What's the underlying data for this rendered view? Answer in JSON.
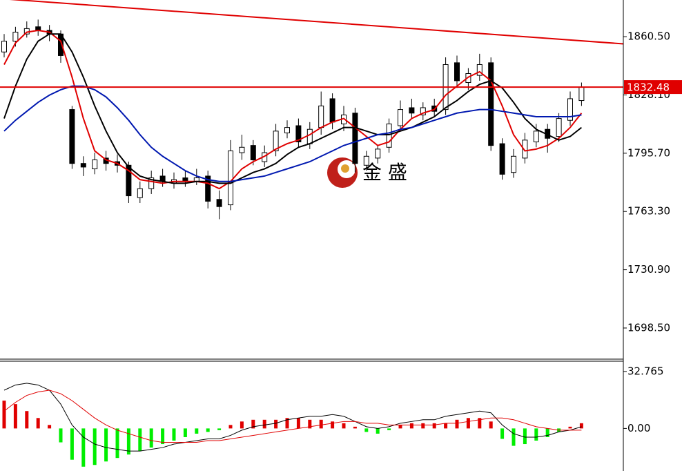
{
  "chart_data": [
    {
      "type": "candlestick",
      "open": [
        1852,
        1858,
        1862,
        1866,
        1864,
        1862,
        1820,
        1790,
        1787,
        1793,
        1791,
        1789,
        1771,
        1776,
        1783,
        1779,
        1782,
        1780,
        1783,
        1770,
        1767,
        1796,
        1800,
        1791,
        1797,
        1807,
        1811,
        1801,
        1810,
        1826,
        1812,
        1818,
        1789,
        1793,
        1799,
        1811,
        1821,
        1817,
        1822,
        1820,
        1846,
        1835,
        1839,
        1846,
        1801,
        1785,
        1793,
        1802,
        1809,
        1805,
        1814,
        1825
      ],
      "high": [
        1862,
        1866,
        1869,
        1870,
        1867,
        1864,
        1822,
        1794,
        1796,
        1797,
        1795,
        1791,
        1780,
        1786,
        1787,
        1785,
        1786,
        1787,
        1786,
        1775,
        1803,
        1806,
        1803,
        1800,
        1812,
        1814,
        1815,
        1813,
        1830,
        1829,
        1822,
        1821,
        1797,
        1800,
        1815,
        1825,
        1826,
        1824,
        1826,
        1849,
        1850,
        1843,
        1851,
        1849,
        1804,
        1798,
        1807,
        1812,
        1812,
        1818,
        1830,
        1835
      ],
      "low": [
        1849,
        1855,
        1860,
        1861,
        1858,
        1846,
        1787,
        1783,
        1784,
        1786,
        1785,
        1768,
        1768,
        1773,
        1777,
        1776,
        1777,
        1778,
        1765,
        1759,
        1764,
        1792,
        1789,
        1788,
        1794,
        1804,
        1799,
        1798,
        1806,
        1809,
        1808,
        1785,
        1786,
        1790,
        1796,
        1808,
        1815,
        1814,
        1816,
        1817,
        1832,
        1831,
        1836,
        1797,
        1781,
        1782,
        1790,
        1799,
        1796,
        1802,
        1811,
        1822
      ],
      "close": [
        1858,
        1863,
        1865,
        1864,
        1862,
        1850,
        1790,
        1788,
        1792,
        1790,
        1789,
        1772,
        1776,
        1782,
        1780,
        1781,
        1780,
        1782,
        1769,
        1766,
        1797,
        1799,
        1792,
        1796,
        1808,
        1810,
        1802,
        1809,
        1822,
        1813,
        1817,
        1790,
        1794,
        1798,
        1812,
        1820,
        1818,
        1821,
        1819,
        1845,
        1836,
        1840,
        1845,
        1800,
        1784,
        1794,
        1803,
        1808,
        1804,
        1815,
        1826,
        1832.48
      ],
      "series": [
        {
          "color": "#e00000",
          "values": [
            1845,
            1857,
            1863,
            1864,
            1863,
            1858,
            1838,
            1815,
            1797,
            1792,
            1790,
            1786,
            1781,
            1780,
            1779,
            1780,
            1780,
            1780,
            1779,
            1776,
            1780,
            1787,
            1791,
            1794,
            1798,
            1801,
            1803,
            1806,
            1810,
            1813,
            1815,
            1810,
            1805,
            1800,
            1802,
            1809,
            1815,
            1818,
            1820,
            1828,
            1833,
            1838,
            1841,
            1836,
            1822,
            1806,
            1797,
            1798,
            1800,
            1804,
            1810,
            1818
          ]
        },
        {
          "color": "#000000",
          "values": [
            1815,
            1833,
            1848,
            1858,
            1862,
            1862,
            1852,
            1838,
            1822,
            1808,
            1796,
            1788,
            1783,
            1781,
            1780,
            1779,
            1779,
            1780,
            1780,
            1779,
            1779,
            1782,
            1785,
            1787,
            1790,
            1795,
            1799,
            1801,
            1804,
            1807,
            1810,
            1810,
            1808,
            1806,
            1806,
            1808,
            1810,
            1813,
            1816,
            1821,
            1825,
            1830,
            1834,
            1836,
            1832,
            1824,
            1815,
            1809,
            1806,
            1803,
            1805,
            1810
          ]
        },
        {
          "color": "#0018b0",
          "values": [
            1808,
            1814,
            1819,
            1824,
            1828,
            1831,
            1833,
            1833,
            1831,
            1827,
            1821,
            1814,
            1806,
            1799,
            1794,
            1790,
            1786,
            1783,
            1781,
            1780,
            1780,
            1781,
            1782,
            1783,
            1785,
            1787,
            1789,
            1791,
            1794,
            1797,
            1800,
            1802,
            1804,
            1806,
            1807,
            1809,
            1810,
            1812,
            1814,
            1816,
            1818,
            1819,
            1820,
            1820,
            1819,
            1818,
            1817,
            1816,
            1816,
            1816,
            1816,
            1817
          ]
        }
      ],
      "trend_line": {
        "x": [
          0,
          51
        ],
        "values": [
          1881.5,
          1858.2
        ],
        "color": "#e00000"
      },
      "last_price": 1832.48,
      "last_price_color": "#e00000",
      "watermark": "金 盛",
      "ylim": [
        1681.2,
        1880.9
      ],
      "yticks": [
        {
          "value": 1860.5,
          "label": "1860.50"
        },
        {
          "value": 1828.1,
          "label": "1828.10"
        },
        {
          "value": 1795.7,
          "label": "1795.70"
        },
        {
          "value": 1763.3,
          "label": "1763.30"
        },
        {
          "value": 1730.9,
          "label": "1730.90"
        },
        {
          "value": 1698.5,
          "label": "1698.50"
        }
      ]
    },
    {
      "type": "macd",
      "histogram": [
        16,
        14,
        10,
        6,
        2,
        -8,
        -18,
        -22,
        -21,
        -19,
        -17,
        -15,
        -13,
        -11,
        -9,
        -7,
        -5,
        -3,
        -2,
        -1,
        2,
        4,
        5,
        5,
        5,
        6,
        6,
        5,
        5,
        4,
        3,
        1,
        -2,
        -3,
        -1,
        2,
        3,
        3,
        3,
        3,
        5,
        6,
        6,
        4,
        -6,
        -10,
        -9,
        -7,
        -5,
        -2,
        1,
        3
      ],
      "positive_color": "#e00000",
      "negative_color": "#00ee00",
      "series": [
        {
          "color": "#000000",
          "values": [
            22,
            25,
            26,
            25,
            22,
            14,
            2,
            -5,
            -9,
            -11,
            -12,
            -13,
            -13,
            -12,
            -11,
            -9,
            -8,
            -7,
            -6,
            -6,
            -4,
            -1,
            1,
            2,
            3,
            5,
            6,
            7,
            7,
            8,
            7,
            4,
            1,
            0,
            1,
            3,
            4,
            5,
            5,
            7,
            8,
            9,
            10,
            9,
            2,
            -3,
            -5,
            -5,
            -4,
            -2,
            -1,
            1
          ]
        },
        {
          "color": "#e00000",
          "values": [
            10,
            15,
            19,
            21,
            22,
            20,
            16,
            11,
            6,
            2,
            -1,
            -3,
            -5,
            -7,
            -8,
            -8,
            -8,
            -8,
            -7,
            -7,
            -6,
            -5,
            -4,
            -3,
            -2,
            -1,
            0,
            1,
            2,
            3,
            4,
            4,
            3,
            3,
            2,
            2,
            2,
            2,
            2,
            3,
            3,
            4,
            5,
            6,
            6,
            5,
            3,
            1,
            0,
            -1,
            -1,
            -1
          ]
        }
      ],
      "ylim": [
        -24.48,
        38.69
      ],
      "yticks": [
        32.765,
        {
          "value": 0,
          "label": "0.00"
        }
      ]
    }
  ]
}
